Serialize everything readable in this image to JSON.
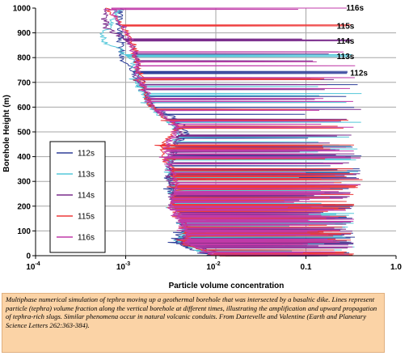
{
  "caption": "Multiphase numerical simulation of tephra moving up a geothermal borehole that was intersected by a basaltic dike. Lines represent particle (tephra) volume fraction along the vertical borehole at different times, illustrating the amplification and upward propagation of tephra-rich slugs.  Similar phenomena occur in natural volcanic conduits. From Dartevelle and Valentine (Earth and Planetary Science Letters 262:363-384).",
  "chart_data": {
    "type": "line",
    "xlabel": "Particle volume concentration",
    "ylabel": "Borehole Height (m)",
    "xscale": "log",
    "xlim": [
      0.0001,
      1.0
    ],
    "ylim": [
      0,
      1000
    ],
    "grid": true,
    "legend_placement": "left-middle",
    "x_tick_labels": [
      "10",
      "10",
      "10",
      "0.1",
      "1.0"
    ],
    "x_tick_exponents": [
      "-4",
      "-3",
      "-2",
      "",
      ""
    ],
    "x_tick_values": [
      0.0001,
      0.001,
      0.01,
      0.1,
      1.0
    ],
    "y_ticks": [
      0,
      100,
      200,
      300,
      400,
      500,
      600,
      700,
      800,
      900,
      1000
    ],
    "curve_labels": [
      {
        "text": "116s",
        "x": 0.28,
        "y": 1003
      },
      {
        "text": "115s",
        "x": 0.22,
        "y": 930
      },
      {
        "text": "114s",
        "x": 0.22,
        "y": 870
      },
      {
        "text": "113s",
        "x": 0.22,
        "y": 808
      },
      {
        "text": "112s",
        "x": 0.31,
        "y": 740
      }
    ],
    "series": [
      {
        "name": "112s",
        "color": "#2e3f99",
        "front": 740,
        "profile": [
          [
            1000,
            0.00085
          ],
          [
            790,
            0.0009
          ],
          [
            760,
            0.0011
          ],
          [
            745,
            0.0012
          ],
          [
            730,
            0.0013
          ],
          [
            700,
            0.0014
          ],
          [
            650,
            0.0017
          ],
          [
            610,
            0.0019
          ],
          [
            600,
            0.0021
          ],
          [
            560,
            0.0033
          ],
          [
            520,
            0.0045
          ],
          [
            500,
            0.0048
          ],
          [
            450,
            0.004
          ],
          [
            400,
            0.0032
          ],
          [
            300,
            0.003
          ],
          [
            250,
            0.0033
          ],
          [
            200,
            0.0036
          ],
          [
            150,
            0.0045
          ],
          [
            100,
            0.0042
          ],
          [
            50,
            0.0035
          ],
          [
            0,
            0.009
          ]
        ]
      },
      {
        "name": "113s",
        "color": "#55c8da",
        "front": 808,
        "profile": [
          [
            1000,
            0.0009
          ],
          [
            985,
            0.0008
          ],
          [
            930,
            0.0007
          ],
          [
            900,
            0.00055
          ],
          [
            860,
            0.0006
          ],
          [
            840,
            0.0008
          ],
          [
            810,
            0.001
          ],
          [
            790,
            0.0012
          ],
          [
            700,
            0.0014
          ],
          [
            650,
            0.0016
          ],
          [
            610,
            0.0018
          ],
          [
            560,
            0.0026
          ],
          [
            500,
            0.0038
          ],
          [
            450,
            0.0035
          ],
          [
            400,
            0.003
          ],
          [
            300,
            0.0032
          ],
          [
            200,
            0.0034
          ],
          [
            150,
            0.004
          ],
          [
            100,
            0.0044
          ],
          [
            50,
            0.0038
          ],
          [
            0,
            0.012
          ]
        ]
      },
      {
        "name": "114s",
        "color": "#7a2d8c",
        "front": 870,
        "profile": [
          [
            1000,
            0.00055
          ],
          [
            970,
            0.00058
          ],
          [
            920,
            0.00062
          ],
          [
            900,
            0.00075
          ],
          [
            870,
            0.001
          ],
          [
            840,
            0.0012
          ],
          [
            800,
            0.0013
          ],
          [
            750,
            0.0014
          ],
          [
            700,
            0.0015
          ],
          [
            650,
            0.0017
          ],
          [
            600,
            0.002
          ],
          [
            550,
            0.003
          ],
          [
            500,
            0.0042
          ],
          [
            450,
            0.0036
          ],
          [
            400,
            0.0033
          ],
          [
            300,
            0.0031
          ],
          [
            200,
            0.0035
          ],
          [
            150,
            0.0045
          ],
          [
            100,
            0.005
          ],
          [
            50,
            0.004
          ],
          [
            0,
            0.015
          ]
        ]
      },
      {
        "name": "115s",
        "color": "#ee3a3a",
        "front": 930,
        "profile": [
          [
            1000,
            0.0006
          ],
          [
            970,
            0.0007
          ],
          [
            940,
            0.0009
          ],
          [
            900,
            0.001
          ],
          [
            860,
            0.0012
          ],
          [
            800,
            0.0013
          ],
          [
            750,
            0.0014
          ],
          [
            700,
            0.0015
          ],
          [
            650,
            0.0017
          ],
          [
            600,
            0.0019
          ],
          [
            560,
            0.0027
          ],
          [
            520,
            0.004
          ],
          [
            480,
            0.003
          ],
          [
            450,
            0.0025
          ],
          [
            400,
            0.0026
          ],
          [
            350,
            0.0032
          ],
          [
            300,
            0.0036
          ],
          [
            200,
            0.0034
          ],
          [
            150,
            0.004
          ],
          [
            100,
            0.005
          ],
          [
            50,
            0.0042
          ],
          [
            0,
            0.011
          ]
        ]
      },
      {
        "name": "116s",
        "color": "#c03aa8",
        "front": 1003,
        "profile": [
          [
            1000,
            0.0007
          ],
          [
            960,
            0.0008
          ],
          [
            920,
            0.00095
          ],
          [
            880,
            0.0011
          ],
          [
            830,
            0.0012
          ],
          [
            780,
            0.0013
          ],
          [
            720,
            0.0014
          ],
          [
            680,
            0.0016
          ],
          [
            640,
            0.0018
          ],
          [
            600,
            0.002
          ],
          [
            560,
            0.0028
          ],
          [
            520,
            0.0038
          ],
          [
            470,
            0.0032
          ],
          [
            420,
            0.0028
          ],
          [
            350,
            0.0031
          ],
          [
            300,
            0.0036
          ],
          [
            250,
            0.0034
          ],
          [
            200,
            0.003
          ],
          [
            150,
            0.0038
          ],
          [
            100,
            0.0046
          ],
          [
            50,
            0.005
          ],
          [
            0,
            0.01
          ]
        ]
      }
    ]
  }
}
